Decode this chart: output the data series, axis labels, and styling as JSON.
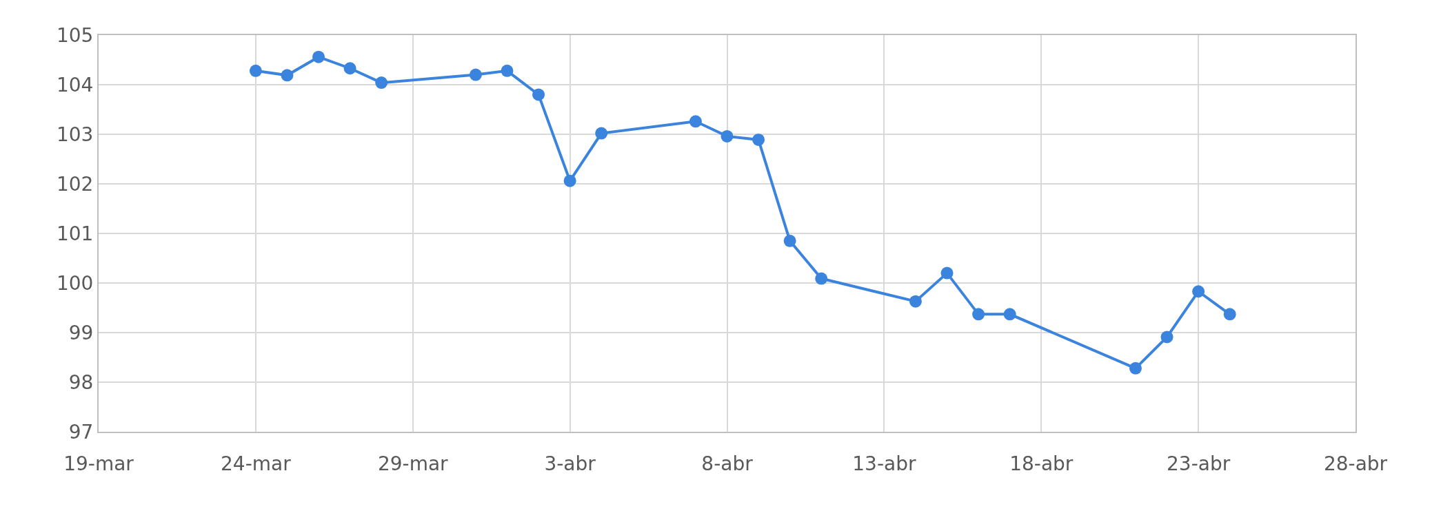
{
  "chart_data": {
    "type": "line",
    "x": [
      "--03-24",
      "--03-25",
      "--03-26",
      "--03-27",
      "--03-28",
      "--03-31",
      "--04-01",
      "--04-02",
      "--04-03",
      "--04-04",
      "--04-07",
      "--04-08",
      "--04-09",
      "--04-10",
      "--04-11",
      "--04-14",
      "--04-15",
      "--04-16",
      "--04-17",
      "--04-21",
      "--04-22",
      "--04-23",
      "--04-24"
    ],
    "series": [
      {
        "color": "#3a84de",
        "values": [
          104.28,
          104.19,
          104.56,
          104.33,
          104.04,
          104.2,
          104.28,
          103.8,
          102.06,
          103.02,
          103.26,
          102.96,
          102.89,
          100.85,
          100.09,
          99.63,
          100.2,
          99.37,
          99.37,
          98.28,
          98.91,
          99.83,
          99.37
        ]
      }
    ],
    "xlim": [
      "--03-19",
      "--04-28"
    ],
    "xticks": [
      {
        "value": "--03-19",
        "label": "19-mar"
      },
      {
        "value": "--03-24",
        "label": "24-mar"
      },
      {
        "value": "--03-29",
        "label": "29-mar"
      },
      {
        "value": "--04-03",
        "label": "3-abr"
      },
      {
        "value": "--04-08",
        "label": "8-abr"
      },
      {
        "value": "--04-13",
        "label": "13-abr"
      },
      {
        "value": "--04-18",
        "label": "18-abr"
      },
      {
        "value": "--04-23",
        "label": "23-abr"
      },
      {
        "value": "--04-28",
        "label": "28-abr"
      }
    ],
    "ylim": [
      97,
      105
    ],
    "yticks": [
      97,
      98,
      99,
      100,
      101,
      102,
      103,
      104,
      105
    ],
    "grid": true,
    "marker": "circle",
    "line_style": "solid"
  }
}
